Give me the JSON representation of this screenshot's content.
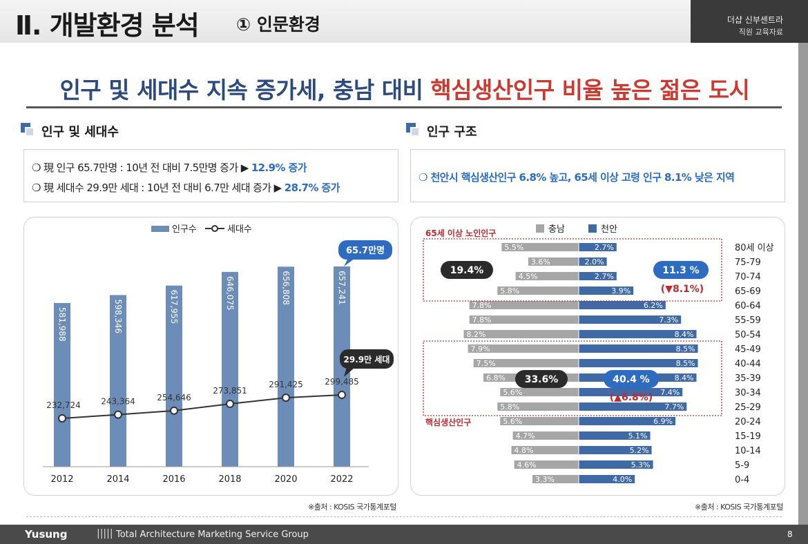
{
  "header": {
    "title": "Ⅱ. 개발환경 분석",
    "subtitle": "① 인문환경",
    "brand_line1": "더샵 신부센트라",
    "brand_line2": "직원 교육자료"
  },
  "headline": {
    "part1": "인구 및 세대수 지속 증가세, 충남 대비 ",
    "part2": "핵심생산인구 비율 높은 젊은 도시"
  },
  "left_section": {
    "title": "인구 및 세대수",
    "line1_text": "❍ 現 인구 65.7만명 : 10년 전 대비 7.5만명 증가 ▶ ",
    "line1_hl": "12.9% 증가",
    "line2_text": "❍ 現 세대수 29.9만 세대 : 10년 전 대비 6.7만 세대 증가 ▶ ",
    "line2_hl": "28.7% 증가",
    "source": "※출처 : KOSIS 국가통계포털"
  },
  "right_section": {
    "title": "인구 구조",
    "line1": "❍ 천안시 핵심생산인구 6.8% 높고, 65세 이상 고령 인구 8.1% 낮은 지역",
    "source": "※출처 : KOSIS 국가통계포털"
  },
  "footer": {
    "logo": "Yusung",
    "bars": "|||||",
    "text": "Total Architecture Marketing Service Group",
    "page": "8"
  },
  "chart_data": [
    {
      "type": "bar",
      "categories": [
        "2012",
        "2014",
        "2016",
        "2018",
        "2020",
        "2022"
      ],
      "series": [
        {
          "name": "인구수",
          "values": [
            581988,
            598346,
            617955,
            646075,
            656808,
            657241
          ],
          "labels": [
            "581,988",
            "598,346",
            "617,955",
            "646,075",
            "656,808",
            "657,241"
          ]
        },
        {
          "name": "세대수",
          "values": [
            232724,
            243364,
            254646,
            273851,
            291425,
            299485
          ],
          "labels": [
            "232,724",
            "243,364",
            "254,646",
            "273,851",
            "291,425",
            "299,485"
          ]
        }
      ],
      "legend_position": "top-center",
      "callouts": {
        "population": "65.7만명",
        "households": "29.9만 세대"
      },
      "colors": {
        "bar": "#6c8db8",
        "line": "#333333",
        "callout_blue": "#2d6cc0",
        "callout_dark": "#2b2b2b"
      }
    },
    {
      "type": "bar",
      "orientation": "horizontal-pyramid",
      "categories": [
        "80세 이상",
        "75-79",
        "70-74",
        "65-69",
        "60-64",
        "55-59",
        "50-54",
        "45-49",
        "40-44",
        "35-39",
        "30-34",
        "25-29",
        "20-24",
        "15-19",
        "10-14",
        "5-9",
        "0-4"
      ],
      "series": [
        {
          "name": "충남",
          "values": [
            5.5,
            3.6,
            4.5,
            5.8,
            7.8,
            7.8,
            8.2,
            7.9,
            7.5,
            6.8,
            5.6,
            5.8,
            5.6,
            4.7,
            4.8,
            4.6,
            3.3
          ],
          "labels": [
            "5.5%",
            "3.6%",
            "4.5%",
            "5.8%",
            "7.8%",
            "7.8%",
            "8.2%",
            "7.9%",
            "7.5%",
            "6.8%",
            "5.6%",
            "5.8%",
            "5.6%",
            "4.7%",
            "4.8%",
            "4.6%",
            "3.3%"
          ]
        },
        {
          "name": "천안",
          "values": [
            2.7,
            2.0,
            2.7,
            3.9,
            6.2,
            7.3,
            8.4,
            8.5,
            8.5,
            8.4,
            7.4,
            7.7,
            6.9,
            5.1,
            5.2,
            5.3,
            4.0
          ],
          "labels": [
            "2.7%",
            "2.0%",
            "2.7%",
            "3.9%",
            "6.2%",
            "7.3%",
            "8.4%",
            "8.5%",
            "8.5%",
            "8.4%",
            "7.4%",
            "7.7%",
            "6.9%",
            "5.1%",
            "5.2%",
            "5.3%",
            "4.0%"
          ]
        }
      ],
      "legend_position": "top-center",
      "groups": [
        {
          "label": "65세 이상 노인인구",
          "left_value": "19.4%",
          "right_value": "11.3 %",
          "diff": "(▼8.1%)"
        },
        {
          "label": "핵심생산인구",
          "left_value": "33.6%",
          "right_value": "40.4 %",
          "diff": "(▲6.8%)"
        }
      ],
      "colors": {
        "chungnam": "#a6a6a6",
        "cheonan": "#3f6aa6",
        "group_border": "#c0282d",
        "diff_red": "#c0282d"
      }
    }
  ]
}
